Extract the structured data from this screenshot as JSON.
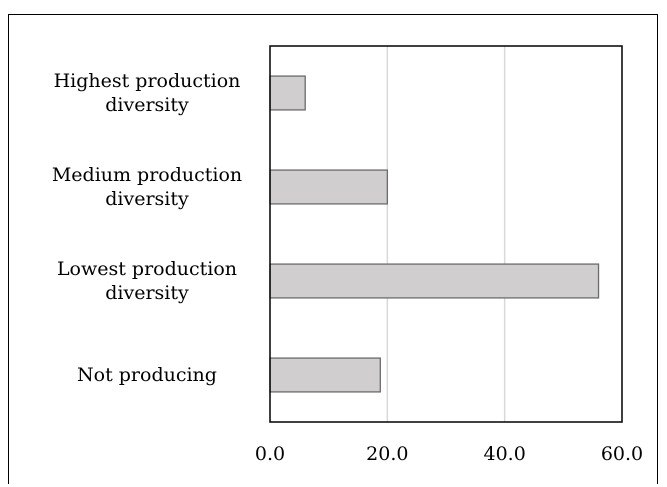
{
  "chart_data": {
    "type": "bar",
    "orientation": "horizontal",
    "title": "",
    "xlabel": "",
    "ylabel": "",
    "categories": [
      [
        "Highest production",
        "diversity"
      ],
      [
        "Medium production",
        "diversity"
      ],
      [
        "Lowest production",
        "diversity"
      ],
      [
        "Not producing"
      ]
    ],
    "values": [
      6.0,
      20.0,
      56.0,
      18.8
    ],
    "xlim": [
      0,
      60
    ],
    "xticks": [
      "0.0",
      "20.0",
      "40.0",
      "60.0"
    ],
    "xtick_values": [
      0,
      20,
      40,
      60
    ],
    "grid": "vertical",
    "bar_color": "#d0cece",
    "bar_edge_color": "#6b6b6b",
    "grid_color": "#d9d9d9"
  }
}
